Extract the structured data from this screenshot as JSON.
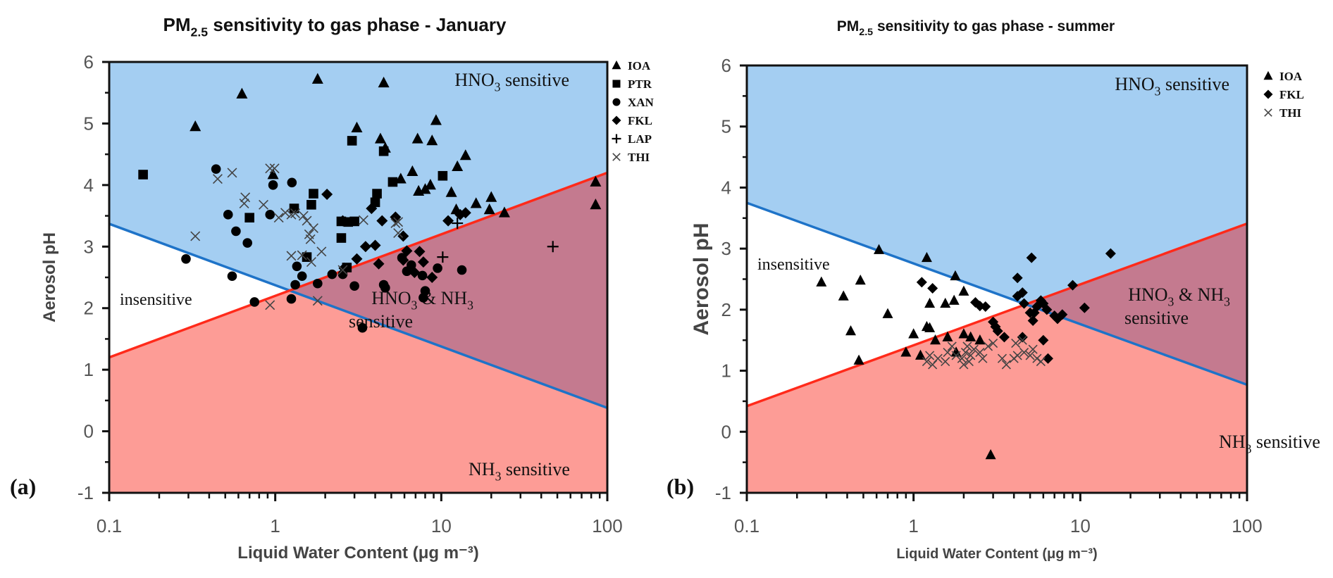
{
  "colors": {
    "hno3_region": "#a4cef2",
    "both_region": "#c47a8f",
    "nh3_region": "#fd9c96",
    "insensitive_region": "#ffffff",
    "red_line": "#ff2a1a",
    "blue_line": "#1e73c8",
    "marker": "#000000",
    "thi_marker": "#444444"
  },
  "chart_data": [
    {
      "id": "a",
      "type": "scatter",
      "panel_label": "(a)",
      "title_main": "PM",
      "title_sub": "2.5",
      "title_rest": " sensitivity to gas phase - January",
      "xlabel": "Liquid Water Content (μg m⁻³)",
      "ylabel": "Aerosol pH",
      "xscale": "log",
      "xlim": [
        0.1,
        100
      ],
      "ylim": [
        -1,
        6
      ],
      "x_ticks": [
        "0.1",
        "1",
        "10",
        "100"
      ],
      "y_ticks": [
        "-1",
        "0",
        "1",
        "2",
        "3",
        "4",
        "5",
        "6"
      ],
      "boundaries": {
        "hno3_line": {
          "color": "blue",
          "x": [
            0.1,
            100
          ],
          "y": [
            3.37,
            0.38
          ]
        },
        "nh3_line": {
          "color": "red",
          "x": [
            0.1,
            100
          ],
          "y": [
            1.2,
            4.2
          ]
        }
      },
      "region_labels": {
        "hno3": {
          "main": "HNO",
          "sub": "3",
          "rest": " sensitive"
        },
        "insensitive": "insensitive",
        "both_line1_a": "HNO",
        "both_line1_sub1": "3",
        "both_line1_b": " & NH",
        "both_line1_sub2": "3",
        "both_line2": "sensitive",
        "nh3": {
          "main": "NH",
          "sub": "3",
          "rest": " sensitive"
        }
      },
      "legend": [
        "IOA",
        "PTR",
        "XAN",
        "FKL",
        "LAP",
        "THI"
      ],
      "series": [
        {
          "name": "IOA",
          "marker": "triangle",
          "points": [
            [
              0.33,
              4.95
            ],
            [
              0.63,
              5.48
            ],
            [
              1.8,
              5.72
            ],
            [
              4.5,
              5.66
            ],
            [
              0.97,
              4.17
            ],
            [
              3.1,
              4.93
            ],
            [
              4.3,
              4.75
            ],
            [
              4.6,
              4.6
            ],
            [
              7.2,
              4.75
            ],
            [
              8.8,
              4.72
            ],
            [
              9.3,
              5.05
            ],
            [
              5.7,
              4.1
            ],
            [
              6.7,
              4.22
            ],
            [
              7.3,
              3.9
            ],
            [
              8.0,
              3.93
            ],
            [
              8.6,
              4.0
            ],
            [
              12.5,
              4.3
            ],
            [
              14.0,
              4.48
            ],
            [
              11.5,
              3.88
            ],
            [
              12.3,
              3.6
            ],
            [
              16.2,
              3.7
            ],
            [
              19.5,
              3.6
            ],
            [
              24.0,
              3.55
            ],
            [
              20.0,
              3.8
            ],
            [
              85.0,
              4.05
            ],
            [
              85.0,
              3.68
            ]
          ]
        },
        {
          "name": "PTR",
          "marker": "square",
          "points": [
            [
              0.16,
              4.17
            ],
            [
              0.7,
              3.47
            ],
            [
              1.3,
              3.62
            ],
            [
              1.7,
              3.86
            ],
            [
              1.65,
              3.68
            ],
            [
              1.55,
              2.83
            ],
            [
              2.5,
              3.14
            ],
            [
              2.7,
              2.66
            ],
            [
              2.75,
              3.4
            ],
            [
              3.0,
              3.41
            ],
            [
              2.9,
              4.72
            ],
            [
              4.5,
              4.55
            ],
            [
              4.0,
              3.72
            ],
            [
              4.1,
              3.86
            ],
            [
              5.1,
              4.05
            ],
            [
              10.2,
              4.15
            ],
            [
              2.5,
              3.41
            ]
          ]
        },
        {
          "name": "XAN",
          "marker": "circle",
          "points": [
            [
              0.44,
              4.26
            ],
            [
              0.52,
              3.52
            ],
            [
              0.58,
              3.25
            ],
            [
              0.68,
              3.06
            ],
            [
              0.97,
              4.0
            ],
            [
              1.26,
              4.04
            ],
            [
              0.93,
              3.52
            ],
            [
              1.35,
              2.68
            ],
            [
              0.29,
              2.8
            ],
            [
              0.55,
              2.52
            ],
            [
              0.75,
              2.1
            ],
            [
              1.25,
              2.15
            ],
            [
              1.32,
              2.38
            ],
            [
              1.45,
              2.52
            ],
            [
              1.8,
              2.4
            ],
            [
              2.2,
              2.55
            ],
            [
              2.55,
              2.55
            ],
            [
              3.0,
              2.36
            ],
            [
              3.35,
              1.68
            ],
            [
              4.5,
              2.38
            ],
            [
              4.6,
              2.33
            ],
            [
              5.8,
              2.82
            ],
            [
              6.2,
              2.6
            ],
            [
              6.6,
              2.7
            ],
            [
              7.7,
              2.53
            ],
            [
              7.8,
              2.17
            ],
            [
              8.0,
              2.28
            ],
            [
              9.5,
              2.65
            ],
            [
              13.3,
              2.62
            ]
          ]
        },
        {
          "name": "FKL",
          "marker": "diamond",
          "points": [
            [
              2.05,
              3.85
            ],
            [
              3.8,
              3.62
            ],
            [
              2.55,
              3.42
            ],
            [
              3.5,
              3.0
            ],
            [
              3.1,
              2.8
            ],
            [
              4.0,
              3.02
            ],
            [
              4.4,
              3.42
            ],
            [
              4.2,
              2.72
            ],
            [
              5.3,
              3.48
            ],
            [
              5.9,
              3.17
            ],
            [
              6.2,
              2.93
            ],
            [
              5.9,
              2.78
            ],
            [
              6.9,
              2.58
            ],
            [
              7.4,
              2.92
            ],
            [
              7.8,
              2.75
            ],
            [
              8.8,
              2.5
            ],
            [
              11.0,
              3.42
            ],
            [
              13.0,
              3.52
            ],
            [
              14.0,
              3.55
            ],
            [
              2.6,
              2.65
            ]
          ]
        },
        {
          "name": "LAP",
          "marker": "plus",
          "points": [
            [
              12.5,
              3.38
            ],
            [
              10.2,
              2.83
            ],
            [
              47.0,
              3.0
            ]
          ]
        },
        {
          "name": "THI",
          "marker": "x",
          "points": [
            [
              0.33,
              3.17
            ],
            [
              0.45,
              4.1
            ],
            [
              0.55,
              4.2
            ],
            [
              0.65,
              3.7
            ],
            [
              0.66,
              3.8
            ],
            [
              0.85,
              3.68
            ],
            [
              0.93,
              4.27
            ],
            [
              0.99,
              4.27
            ],
            [
              1.05,
              3.47
            ],
            [
              1.25,
              3.52
            ],
            [
              1.32,
              3.54
            ],
            [
              1.48,
              3.5
            ],
            [
              1.55,
              3.42
            ],
            [
              1.6,
              3.2
            ],
            [
              1.63,
              3.12
            ],
            [
              1.45,
              2.86
            ],
            [
              1.65,
              2.75
            ],
            [
              1.9,
              2.92
            ],
            [
              1.25,
              2.85
            ],
            [
              0.93,
              2.05
            ],
            [
              1.8,
              2.12
            ],
            [
              2.55,
              2.62
            ],
            [
              3.4,
              3.43
            ],
            [
              5.3,
              3.38
            ],
            [
              5.5,
              3.22
            ],
            [
              5.5,
              3.4
            ],
            [
              1.7,
              3.3
            ],
            [
              1.15,
              3.55
            ]
          ]
        }
      ]
    },
    {
      "id": "b",
      "type": "scatter",
      "panel_label": "(b)",
      "title_main": "PM",
      "title_sub": "2.5",
      "title_rest": " sensitivity to gas phase - summer",
      "xlabel": "Liquid Water Content (μg m⁻³)",
      "ylabel": "Aerosol pH",
      "xscale": "log",
      "xlim": [
        0.1,
        100
      ],
      "ylim": [
        -1,
        6
      ],
      "x_ticks": [
        "0.1",
        "1",
        "10",
        "100"
      ],
      "y_ticks": [
        "-1",
        "0",
        "1",
        "2",
        "3",
        "4",
        "5",
        "6"
      ],
      "boundaries": {
        "hno3_line": {
          "color": "blue",
          "x": [
            0.1,
            100
          ],
          "y": [
            3.75,
            0.77
          ]
        },
        "nh3_line": {
          "color": "red",
          "x": [
            0.1,
            100
          ],
          "y": [
            0.42,
            3.41
          ]
        }
      },
      "region_labels": {
        "hno3": {
          "main": "HNO",
          "sub": "3",
          "rest": " sensitive"
        },
        "insensitive": "insensitive",
        "both_line1_a": "HNO",
        "both_line1_sub1": "3",
        "both_line1_b": " & NH",
        "both_line1_sub2": "3",
        "both_line2": "sensitive",
        "nh3": {
          "main": "NH",
          "sub": "3",
          "rest": " sensitive"
        }
      },
      "legend": [
        "IOA",
        "FKL",
        "THI"
      ],
      "series": [
        {
          "name": "IOA",
          "marker": "triangle",
          "points": [
            [
              0.28,
              2.45
            ],
            [
              0.38,
              2.22
            ],
            [
              0.42,
              1.65
            ],
            [
              0.47,
              1.17
            ],
            [
              0.48,
              2.48
            ],
            [
              0.7,
              1.93
            ],
            [
              0.62,
              2.98
            ],
            [
              1.2,
              2.85
            ],
            [
              1.25,
              2.1
            ],
            [
              1.55,
              2.1
            ],
            [
              1.78,
              2.55
            ],
            [
              1.75,
              2.15
            ],
            [
              2.0,
              2.3
            ],
            [
              1.0,
              1.6
            ],
            [
              1.2,
              1.72
            ],
            [
              1.25,
              1.7
            ],
            [
              0.9,
              1.3
            ],
            [
              1.1,
              1.25
            ],
            [
              1.35,
              1.5
            ],
            [
              1.6,
              1.55
            ],
            [
              2.0,
              1.6
            ],
            [
              2.2,
              1.55
            ],
            [
              2.5,
              1.5
            ],
            [
              1.8,
              1.3
            ],
            [
              2.9,
              -0.38
            ]
          ]
        },
        {
          "name": "FKL",
          "marker": "diamond",
          "points": [
            [
              1.12,
              2.45
            ],
            [
              1.3,
              2.35
            ],
            [
              2.35,
              2.12
            ],
            [
              2.5,
              2.06
            ],
            [
              2.7,
              2.05
            ],
            [
              3.0,
              1.8
            ],
            [
              3.1,
              1.72
            ],
            [
              3.2,
              1.65
            ],
            [
              4.2,
              2.52
            ],
            [
              4.2,
              2.22
            ],
            [
              4.5,
              2.28
            ],
            [
              4.6,
              2.1
            ],
            [
              5.1,
              2.85
            ],
            [
              5.0,
              1.95
            ],
            [
              5.3,
              1.95
            ],
            [
              5.2,
              1.82
            ],
            [
              5.5,
              2.05
            ],
            [
              5.8,
              2.15
            ],
            [
              6.0,
              2.1
            ],
            [
              6.3,
              2.0
            ],
            [
              7.3,
              1.85
            ],
            [
              7.0,
              1.9
            ],
            [
              7.8,
              1.92
            ],
            [
              9.0,
              2.4
            ],
            [
              10.6,
              2.03
            ],
            [
              15.2,
              2.92
            ],
            [
              3.5,
              1.55
            ],
            [
              4.5,
              1.55
            ],
            [
              6.0,
              1.5
            ],
            [
              6.4,
              1.2
            ]
          ]
        },
        {
          "name": "THI",
          "marker": "x",
          "points": [
            [
              1.2,
              1.15
            ],
            [
              1.25,
              1.25
            ],
            [
              1.3,
              1.1
            ],
            [
              1.4,
              1.2
            ],
            [
              1.55,
              1.15
            ],
            [
              1.6,
              1.3
            ],
            [
              1.7,
              1.4
            ],
            [
              1.8,
              1.25
            ],
            [
              1.95,
              1.2
            ],
            [
              2.0,
              1.1
            ],
            [
              2.05,
              1.3
            ],
            [
              2.1,
              1.4
            ],
            [
              2.15,
              1.15
            ],
            [
              2.2,
              1.25
            ],
            [
              2.3,
              1.35
            ],
            [
              2.5,
              1.3
            ],
            [
              2.6,
              1.2
            ],
            [
              2.8,
              1.4
            ],
            [
              3.0,
              1.45
            ],
            [
              3.4,
              1.2
            ],
            [
              3.6,
              1.1
            ],
            [
              4.1,
              1.45
            ],
            [
              4.2,
              1.25
            ],
            [
              4.5,
              1.5
            ],
            [
              4.6,
              1.3
            ],
            [
              5.0,
              1.25
            ],
            [
              5.2,
              1.35
            ],
            [
              5.5,
              1.2
            ],
            [
              5.8,
              1.15
            ],
            [
              4.0,
              1.2
            ]
          ]
        }
      ]
    }
  ]
}
